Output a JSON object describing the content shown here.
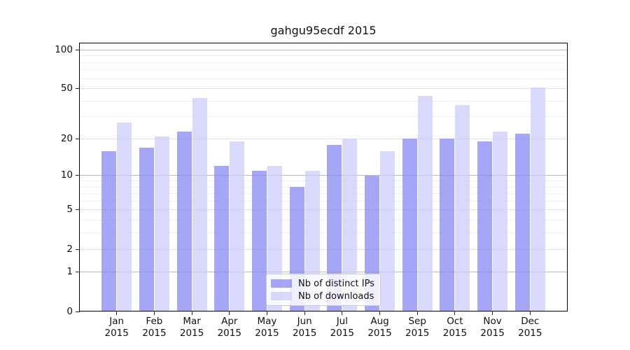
{
  "title": "gahgu95ecdf 2015",
  "chart_data": {
    "type": "bar",
    "title": "gahgu95ecdf 2015",
    "categories": [
      "Jan",
      "Feb",
      "Mar",
      "Apr",
      "May",
      "Jun",
      "Jul",
      "Aug",
      "Sep",
      "Oct",
      "Nov",
      "Dec"
    ],
    "xtick_year": "2015",
    "series": [
      {
        "name": "Nb of distinct IPs",
        "color": "#8888f4",
        "values": [
          16,
          17,
          23,
          12,
          11,
          8,
          18,
          10,
          20,
          20,
          19,
          22
        ]
      },
      {
        "name": "Nb of downloads",
        "color": "#ccccf9",
        "values": [
          27,
          21,
          42,
          19,
          12,
          11,
          20,
          16,
          44,
          37,
          23,
          51
        ]
      }
    ],
    "yscale": "log1p",
    "ylim": [
      0,
      113
    ],
    "xlim": [
      -1,
      12
    ],
    "yticks": [
      100,
      50,
      20,
      10,
      5,
      2,
      1,
      0
    ],
    "gridlines": {
      "strong": [
        1,
        10,
        100
      ],
      "medium": [
        2,
        5,
        20,
        50
      ],
      "faint": [
        3,
        4,
        6,
        7,
        8,
        9,
        30,
        40,
        60,
        70,
        80,
        90
      ]
    },
    "grid_colors": {
      "strong": "#bbbbbb",
      "medium": "#e3e3e3",
      "faint": "#f0f0f0"
    },
    "axis_color": "#000000",
    "background": "#ffffff",
    "legend_position": "bottom-center",
    "grid": "on"
  }
}
